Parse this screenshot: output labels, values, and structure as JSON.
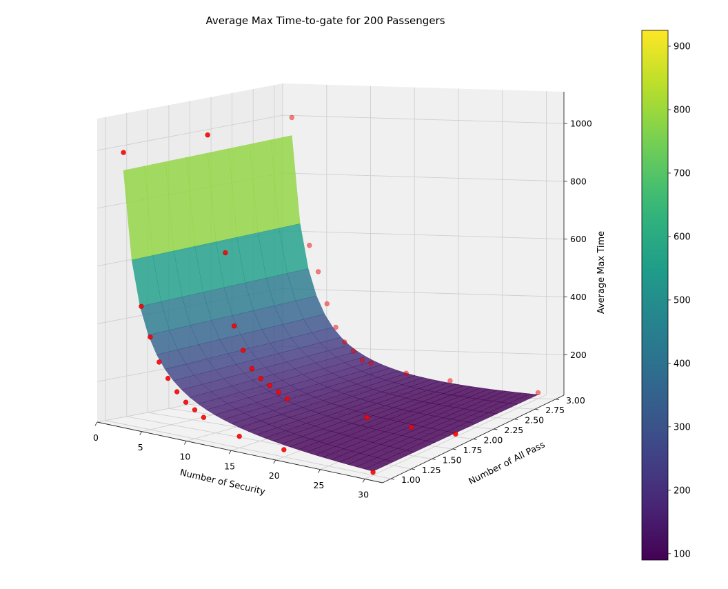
{
  "chart_data": {
    "type": "surface3d",
    "title": "Average Max Time-to-gate for 200 Passengers",
    "xlabel": "Number of Security",
    "ylabel": "Number of All Pass",
    "zlabel": "Average Max Time",
    "x_ticks": [
      "0",
      "5",
      "10",
      "15",
      "20",
      "25",
      "30"
    ],
    "y_ticks": [
      "1.00",
      "1.25",
      "1.50",
      "1.75",
      "2.00",
      "2.25",
      "2.50",
      "2.75",
      "3.00"
    ],
    "z_ticks": [
      "200",
      "400",
      "600",
      "800",
      "1000"
    ],
    "colorbar_ticks": [
      "100",
      "200",
      "300",
      "400",
      "500",
      "600",
      "700",
      "800",
      "900"
    ],
    "colorbar_range": [
      90,
      925
    ],
    "colormap": "viridis",
    "surface_model": "z = 20 + 1900 / x^1.05 (nearly independent of y)",
    "xlim": [
      0,
      32
    ],
    "ylim": [
      0.9,
      3.1
    ],
    "zlim": [
      60,
      1110
    ],
    "point_color": "#ff0000",
    "points": [
      {
        "x": 2,
        "y": 1,
        "z": 1000
      },
      {
        "x": 4,
        "y": 1,
        "z": 480
      },
      {
        "x": 5,
        "y": 1,
        "z": 380
      },
      {
        "x": 6,
        "y": 1,
        "z": 300
      },
      {
        "x": 7,
        "y": 1,
        "z": 250
      },
      {
        "x": 8,
        "y": 1,
        "z": 210
      },
      {
        "x": 9,
        "y": 1,
        "z": 180
      },
      {
        "x": 10,
        "y": 1,
        "z": 160
      },
      {
        "x": 11,
        "y": 1,
        "z": 140
      },
      {
        "x": 15,
        "y": 1,
        "z": 100
      },
      {
        "x": 20,
        "y": 1,
        "z": 85
      },
      {
        "x": 30,
        "y": 1,
        "z": 70
      },
      {
        "x": 2,
        "y": 2,
        "z": 1000
      },
      {
        "x": 4,
        "y": 2,
        "z": 600
      },
      {
        "x": 5,
        "y": 2,
        "z": 350
      },
      {
        "x": 6,
        "y": 2,
        "z": 270
      },
      {
        "x": 7,
        "y": 2,
        "z": 210
      },
      {
        "x": 8,
        "y": 2,
        "z": 180
      },
      {
        "x": 9,
        "y": 2,
        "z": 160
      },
      {
        "x": 10,
        "y": 2,
        "z": 140
      },
      {
        "x": 11,
        "y": 2,
        "z": 120
      },
      {
        "x": 20,
        "y": 2,
        "z": 90
      },
      {
        "x": 25,
        "y": 2,
        "z": 75
      },
      {
        "x": 30,
        "y": 2,
        "z": 70
      },
      {
        "x": 2,
        "y": 3,
        "z": 1000
      },
      {
        "x": 4,
        "y": 3,
        "z": 560
      },
      {
        "x": 5,
        "y": 3,
        "z": 470
      },
      {
        "x": 6,
        "y": 3,
        "z": 360
      },
      {
        "x": 7,
        "y": 3,
        "z": 280
      },
      {
        "x": 8,
        "y": 3,
        "z": 230
      },
      {
        "x": 9,
        "y": 3,
        "z": 200
      },
      {
        "x": 10,
        "y": 3,
        "z": 170
      },
      {
        "x": 11,
        "y": 3,
        "z": 160
      },
      {
        "x": 15,
        "y": 3,
        "z": 130
      },
      {
        "x": 20,
        "y": 3,
        "z": 110
      },
      {
        "x": 30,
        "y": 3,
        "z": 80
      }
    ]
  }
}
